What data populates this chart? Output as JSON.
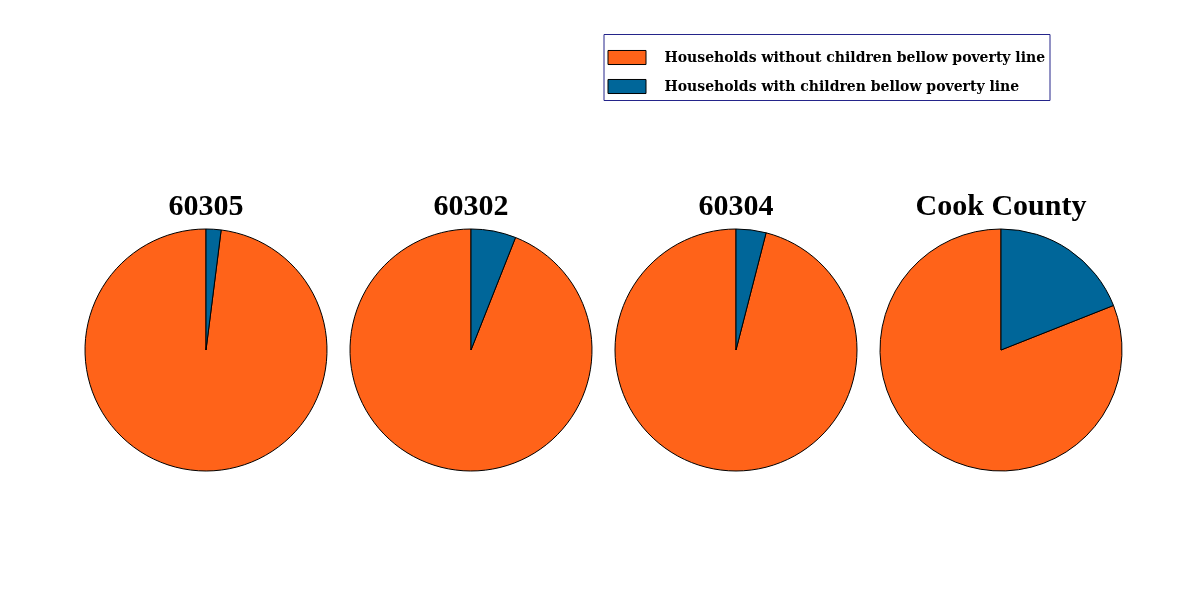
{
  "chart_data": {
    "type": "pie",
    "categories": [
      "Households without children bellow poverty line",
      "Households with children bellow poverty line"
    ],
    "colors": [
      "#ff6319",
      "#006699"
    ],
    "legend": "top right",
    "series": [
      {
        "name": "60305",
        "values": [
          98,
          2
        ]
      },
      {
        "name": "60302",
        "values": [
          94,
          6
        ]
      },
      {
        "name": "60304",
        "values": [
          96,
          4
        ]
      },
      {
        "name": "Cook County",
        "values": [
          81,
          19
        ]
      }
    ]
  }
}
